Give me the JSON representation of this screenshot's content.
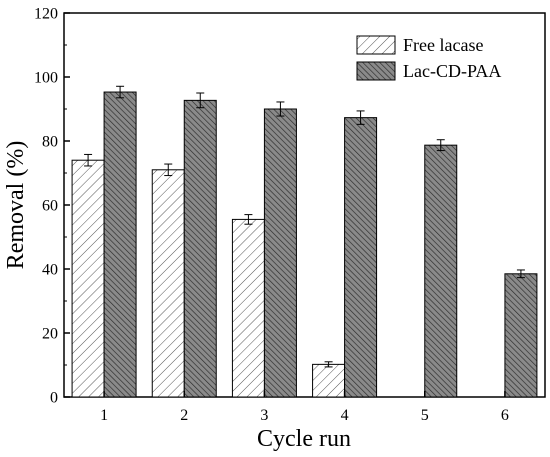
{
  "chart_data": {
    "type": "bar",
    "xlabel": "Cycle run",
    "ylabel": "Removal (%)",
    "categories": [
      "1",
      "2",
      "3",
      "4",
      "5",
      "6"
    ],
    "ylim": [
      0,
      120
    ],
    "yticks": [
      "0",
      "20",
      "40",
      "60",
      "80",
      "100",
      "120"
    ],
    "legend_position": "top-right",
    "grid": false,
    "series": [
      {
        "name": "Free lacase",
        "values": [
          74,
          71,
          55.5,
          10.2,
          null,
          null
        ],
        "errors": [
          1.8,
          1.8,
          1.5,
          0.8,
          null,
          null
        ],
        "fill": "#ffffff",
        "hatch": "sparse-diagonal"
      },
      {
        "name": "Lac-CD-PAA",
        "values": [
          95.3,
          92.7,
          90,
          87.3,
          78.7,
          38.5
        ],
        "errors": [
          1.8,
          2.3,
          2.2,
          2.1,
          1.7,
          1.2
        ],
        "fill": "#7a7a7a",
        "hatch": "dense-diagonal"
      }
    ]
  }
}
